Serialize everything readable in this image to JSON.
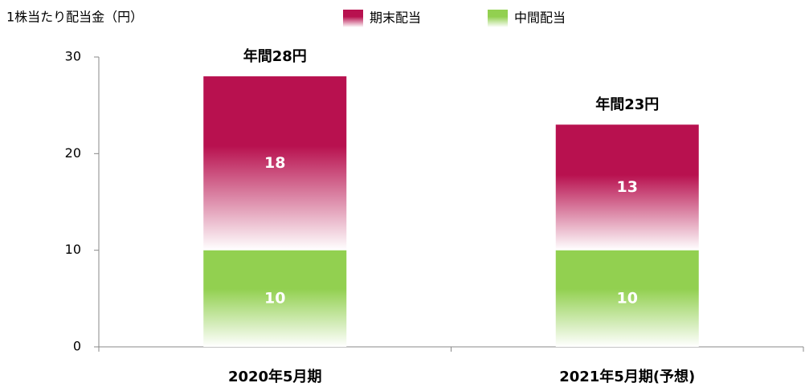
{
  "chart_data": {
    "type": "stacked_bar",
    "y_axis_label": "1株当たり配当金（円）",
    "categories": [
      "2020年5月期",
      "2021年5月期(予想)"
    ],
    "series": [
      {
        "name": "期末配当",
        "color": "#b8114f",
        "values": [
          18,
          13
        ]
      },
      {
        "name": "中間配当",
        "color": "#92d050",
        "values": [
          10,
          10
        ]
      }
    ],
    "total_labels": [
      "年間28円",
      "年間23円"
    ],
    "ylim": [
      0,
      30
    ],
    "yticks": [
      0,
      10,
      20,
      30
    ],
    "grid": false
  }
}
